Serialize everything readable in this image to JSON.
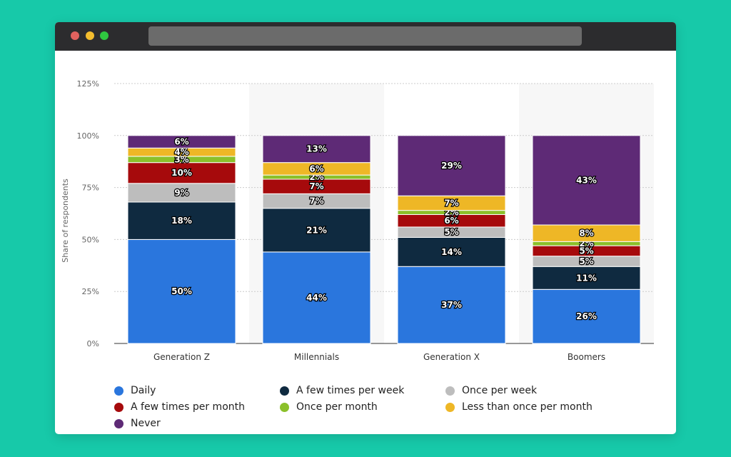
{
  "window": {
    "controls": [
      {
        "name": "close",
        "color": "#e0625f"
      },
      {
        "name": "minimize",
        "color": "#f3bd2e"
      },
      {
        "name": "maximize",
        "color": "#2fc840"
      }
    ]
  },
  "chart_data": {
    "type": "bar",
    "stacked": true,
    "ylabel": "Share of respondents",
    "ylim": [
      0,
      125
    ],
    "yticks": [
      "0%",
      "25%",
      "50%",
      "75%",
      "100%",
      "125%"
    ],
    "categories": [
      "Generation Z",
      "Millennials",
      "Generation X",
      "Boomers"
    ],
    "grid": true,
    "legend_placement": "bottom",
    "series": [
      {
        "name": "Daily",
        "color": "#2a76dd",
        "values": [
          50,
          44,
          37,
          26
        ]
      },
      {
        "name": "A few times per week",
        "color": "#0f2a40",
        "values": [
          18,
          21,
          14,
          11
        ]
      },
      {
        "name": "Once per week",
        "color": "#bdbdbd",
        "values": [
          9,
          7,
          5,
          5
        ]
      },
      {
        "name": "A few times per month",
        "color": "#a60a0c",
        "values": [
          10,
          7,
          6,
          5
        ]
      },
      {
        "name": "Once per month",
        "color": "#8bc02a",
        "values": [
          3,
          2,
          2,
          2
        ]
      },
      {
        "name": "Less than once per month",
        "color": "#eeb726",
        "values": [
          4,
          6,
          7,
          8
        ]
      },
      {
        "name": "Never",
        "color": "#5e2a76",
        "values": [
          6,
          13,
          29,
          43
        ]
      }
    ]
  }
}
